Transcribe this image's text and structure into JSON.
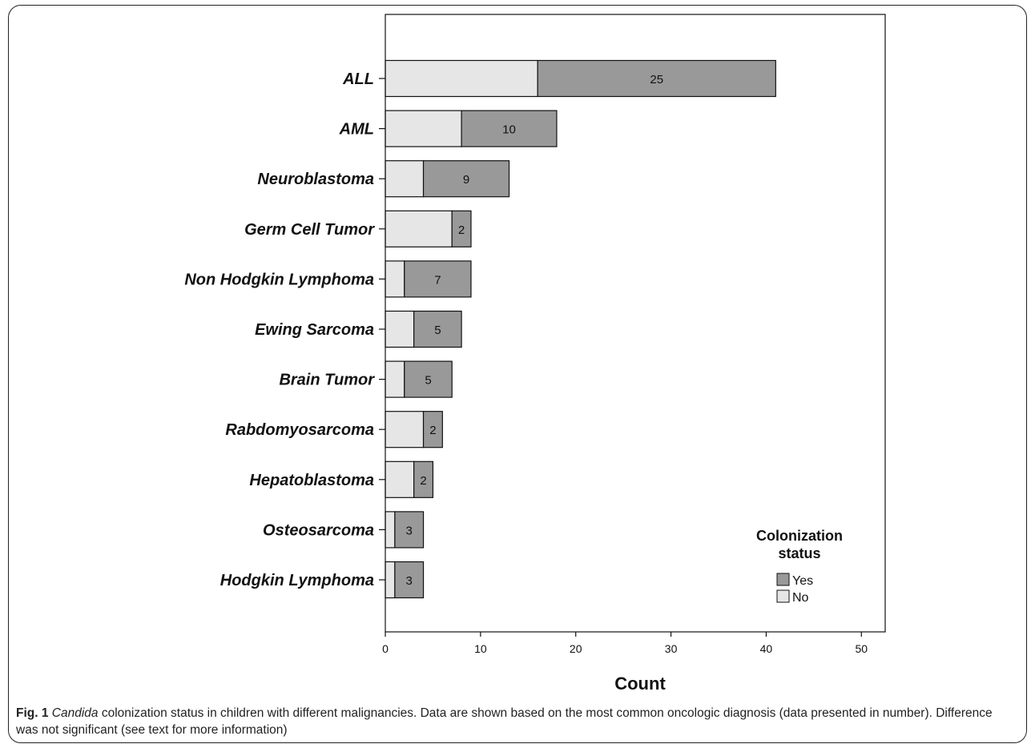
{
  "caption": {
    "fig_label": "Fig. 1",
    "italic_word": "Candida",
    "text": " colonization status in children with different malignancies. Data are shown based on the most common oncologic diagnosis (data presented in number). Difference was not significant (see text for more information)"
  },
  "colors": {
    "yes": "#999999",
    "no": "#e6e6e6",
    "axis": "#111111"
  },
  "chart_data": {
    "type": "bar",
    "orientation": "horizontal",
    "stacked": true,
    "categories": [
      "ALL",
      "AML",
      "Neuroblastoma",
      "Germ Cell Tumor",
      "Non Hodgkin Lymphoma",
      "Ewing Sarcoma",
      "Brain Tumor",
      "Rabdomyosarcoma",
      "Hepatoblastoma",
      "Osteosarcoma",
      "Hodgkin Lymphoma"
    ],
    "series": [
      {
        "name": "No",
        "values": [
          16,
          8,
          4,
          7,
          2,
          3,
          2,
          4,
          3,
          1,
          1
        ]
      },
      {
        "name": "Yes",
        "values": [
          25,
          10,
          9,
          2,
          7,
          5,
          5,
          2,
          2,
          3,
          3
        ]
      }
    ],
    "bar_labels_series": "Yes",
    "xlabel": "Count",
    "xlim": [
      0,
      52.5
    ],
    "xticks": [
      0,
      10,
      20,
      30,
      40,
      50
    ],
    "legend": {
      "title_line1": "Colonization",
      "title_line2": "status",
      "entries": [
        "Yes",
        "No"
      ],
      "position": "bottom-right"
    },
    "grid": false
  }
}
